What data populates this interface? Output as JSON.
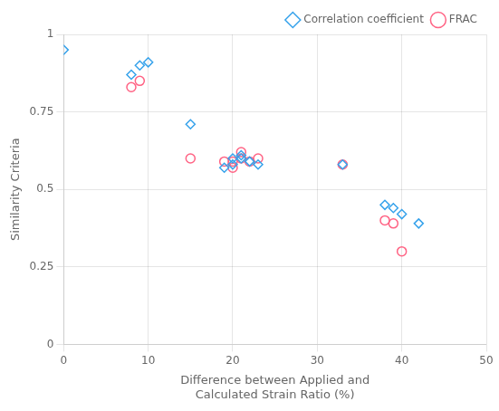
{
  "chart_data": {
    "type": "scatter",
    "xlabel": "Difference between Applied and\nCalculated Strain Ratio (%)",
    "ylabel": "Similarity Criteria",
    "series": [
      {
        "name": "Correlation coefficient",
        "marker": "diamond",
        "x": [
          0,
          8,
          9,
          10,
          15,
          19,
          20,
          20,
          21,
          21,
          22,
          23,
          33,
          38,
          39,
          40,
          42
        ],
        "values": [
          0.95,
          0.87,
          0.9,
          0.91,
          0.71,
          0.57,
          0.58,
          0.6,
          0.6,
          0.61,
          0.59,
          0.58,
          0.58,
          0.45,
          0.44,
          0.42,
          0.39
        ]
      },
      {
        "name": "FRAC",
        "marker": "circle",
        "x": [
          8,
          9,
          15,
          19,
          20,
          20,
          21,
          21,
          22,
          23,
          33,
          38,
          39,
          40
        ],
        "values": [
          0.83,
          0.85,
          0.6,
          0.59,
          0.57,
          0.59,
          0.62,
          0.6,
          0.59,
          0.6,
          0.58,
          0.4,
          0.39,
          0.3
        ]
      }
    ],
    "xlim": [
      0,
      50
    ],
    "ylim": [
      0,
      1.0
    ],
    "xticks": [
      0,
      10,
      20,
      30,
      40,
      50
    ],
    "yticks": [
      0,
      0.25,
      0.5,
      0.75,
      1
    ],
    "grid": true,
    "legend": "upper right"
  }
}
